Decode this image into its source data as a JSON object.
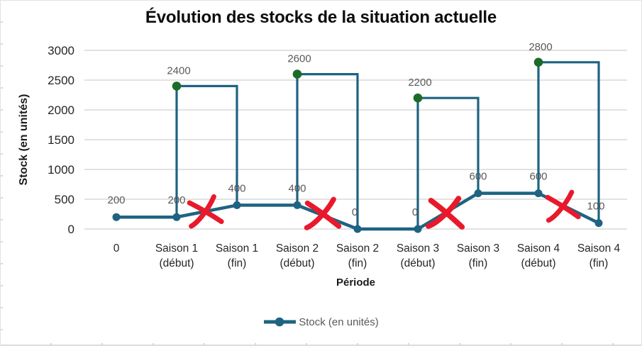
{
  "window": {
    "kind": "embedded-excel-chart"
  },
  "chart_data": {
    "type": "line",
    "title": "Évolution des stocks de la situation actuelle",
    "xlabel": "Période",
    "ylabel": "Stock (en unités)",
    "legend": [
      "Stock (en unités)"
    ],
    "legend_position": "bottom",
    "grid": true,
    "ylim": [
      0,
      3000
    ],
    "yticks": [
      3000,
      2500,
      2000,
      1500,
      1000,
      500,
      0
    ],
    "categories": [
      "0",
      "Saison 1 (début)",
      "Saison 1 (fin)",
      "Saison 2 (début)",
      "Saison 2 (fin)",
      "Saison 3 (début)",
      "Saison 3 (fin)",
      "Saison 4 (début)",
      "Saison 4 (fin)"
    ],
    "series": [
      {
        "name": "Stock (en unités)",
        "values": [
          200,
          200,
          400,
          400,
          0,
          0,
          600,
          600,
          100
        ]
      }
    ],
    "replenishment_peaks": [
      {
        "at": "Saison 1 (début)",
        "start_index": 1,
        "end_index": 2,
        "value": 2400
      },
      {
        "at": "Saison 2 (début)",
        "start_index": 3,
        "end_index": 4,
        "value": 2600
      },
      {
        "at": "Saison 3 (début)",
        "start_index": 5,
        "end_index": 6,
        "value": 2200
      },
      {
        "at": "Saison 4 (début)",
        "start_index": 7,
        "end_index": 8,
        "value": 2800
      }
    ],
    "data_labels": [
      "200",
      "200",
      "400",
      "400",
      "0",
      "0",
      "600",
      "600",
      "100"
    ],
    "peak_labels": [
      "2400",
      "2600",
      "2200",
      "2800"
    ],
    "annotations": {
      "red_cross_between_indices": [
        [
          1,
          2
        ],
        [
          3,
          4
        ],
        [
          5,
          6
        ],
        [
          7,
          8
        ]
      ]
    },
    "colors": {
      "line": "#1e6382",
      "marker": "#1e6382",
      "peak_marker": "#1d6b28",
      "cross": "#e9192c",
      "grid": "#d9d9d9",
      "data_label": "#595959",
      "axis_text": "#262626"
    }
  },
  "legend": {
    "label": "Stock (en unités)"
  }
}
